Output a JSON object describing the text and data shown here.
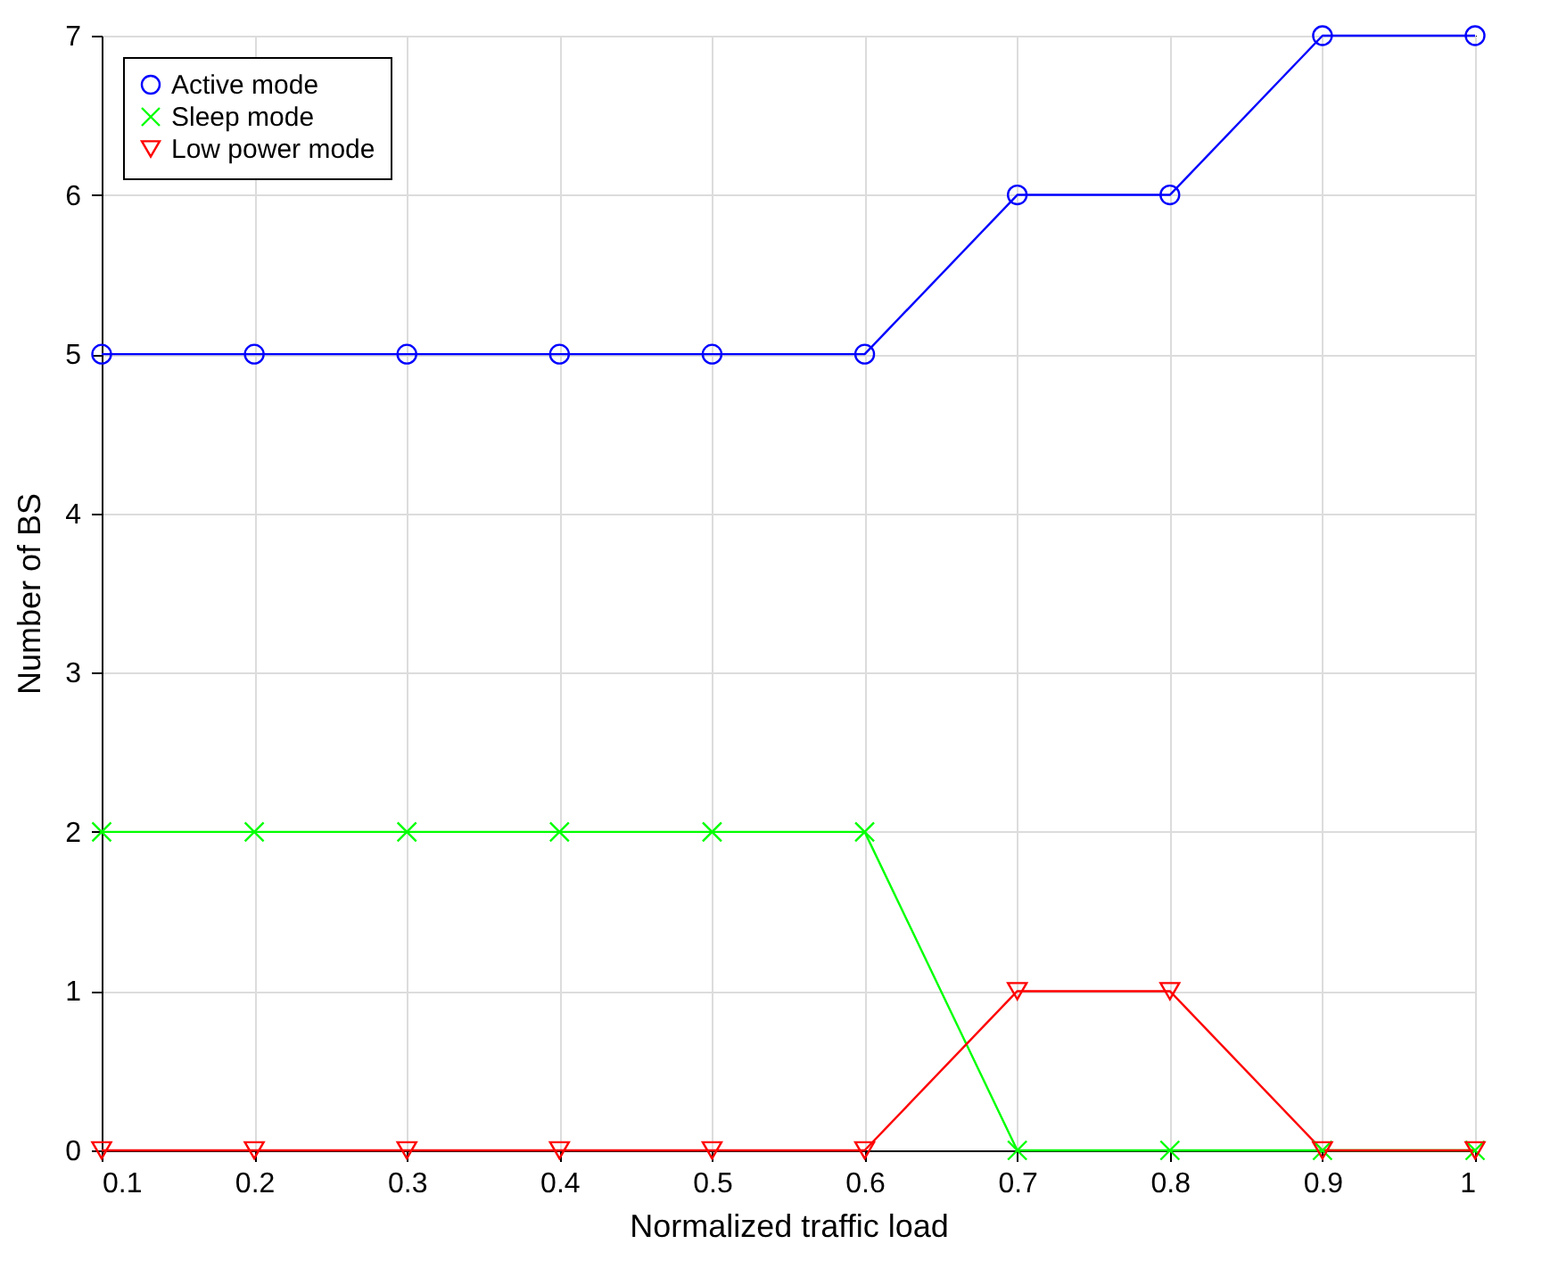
{
  "chart_data": {
    "type": "line",
    "xlabel": "Normalized traffic load",
    "ylabel": "Number of BS",
    "x": [
      0.1,
      0.2,
      0.3,
      0.4,
      0.5,
      0.6,
      0.7,
      0.8,
      0.9,
      1
    ],
    "series": [
      {
        "name": "Active mode",
        "color": "#0000ff",
        "marker": "circle",
        "values": [
          5,
          5,
          5,
          5,
          5,
          5,
          6,
          6,
          7,
          7
        ]
      },
      {
        "name": "Sleep mode",
        "color": "#00ff00",
        "marker": "cross",
        "values": [
          2,
          2,
          2,
          2,
          2,
          2,
          0,
          0,
          0,
          0
        ]
      },
      {
        "name": "Low power mode",
        "color": "#ff0000",
        "marker": "triangle",
        "values": [
          0,
          0,
          0,
          0,
          0,
          0,
          1,
          1,
          0,
          0
        ]
      }
    ],
    "xlim": [
      0.1,
      1
    ],
    "xticks": [
      0.1,
      0.2,
      0.3,
      0.4,
      0.5,
      0.6,
      0.7,
      0.8,
      0.9,
      1
    ],
    "ylim": [
      0,
      7
    ],
    "yticks": [
      0,
      1,
      2,
      3,
      4,
      5,
      6,
      7
    ],
    "grid": true,
    "legend": "top left"
  }
}
